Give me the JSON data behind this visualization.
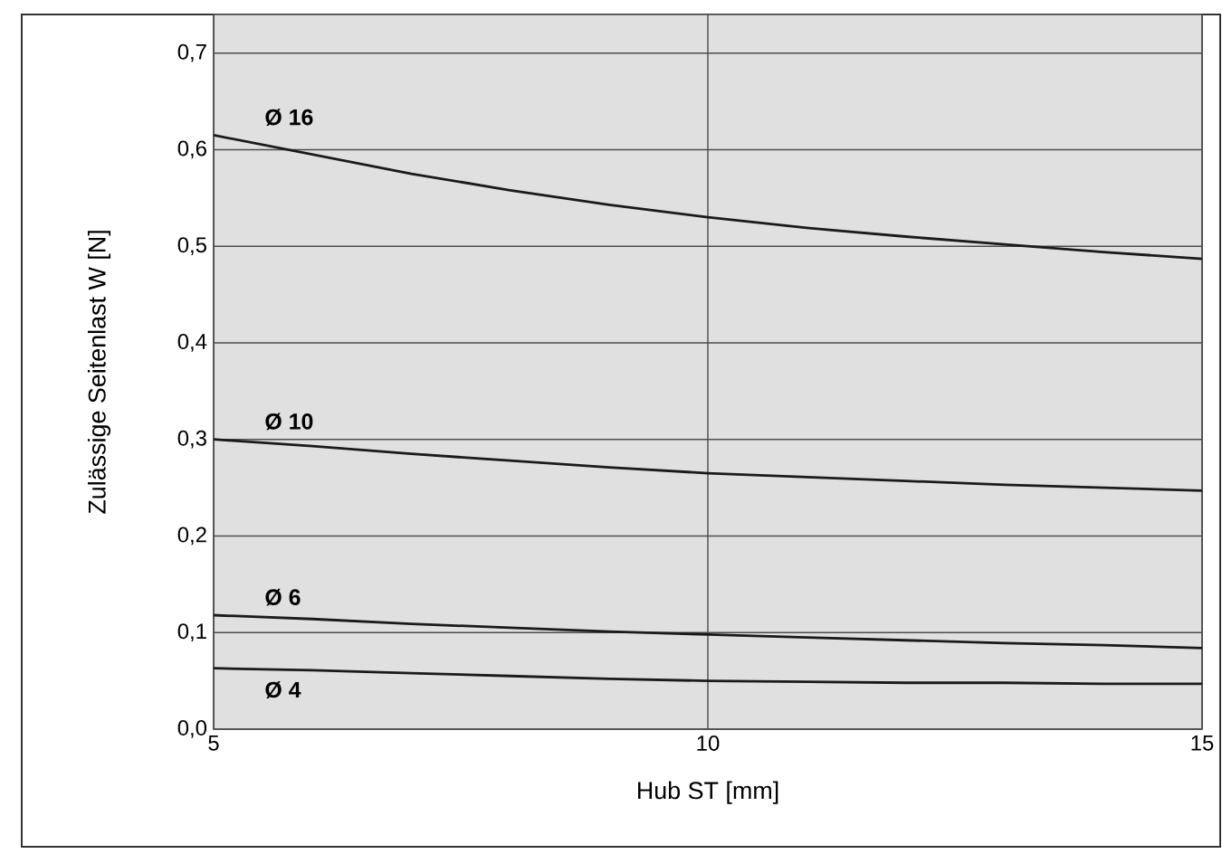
{
  "chart_data": {
    "type": "line",
    "xlabel": "Hub ST [mm]",
    "ylabel": "Zulässige Seitenlast W [N]",
    "x": [
      5,
      6,
      7,
      8,
      9,
      10,
      11,
      12,
      13,
      14,
      15
    ],
    "series": [
      {
        "name": "Ø 16",
        "color": "#1a1a1a",
        "values": [
          0.615,
          0.595,
          0.575,
          0.558,
          0.543,
          0.53,
          0.519,
          0.51,
          0.502,
          0.494,
          0.487
        ]
      },
      {
        "name": "Ø 10",
        "color": "#1a1a1a",
        "values": [
          0.3,
          0.293,
          0.285,
          0.278,
          0.271,
          0.265,
          0.261,
          0.257,
          0.253,
          0.25,
          0.247
        ]
      },
      {
        "name": "Ø 6",
        "color": "#1a1a1a",
        "values": [
          0.118,
          0.114,
          0.109,
          0.105,
          0.101,
          0.098,
          0.095,
          0.092,
          0.089,
          0.087,
          0.084
        ]
      },
      {
        "name": "Ø 4",
        "color": "#1a1a1a",
        "values": [
          0.063,
          0.061,
          0.058,
          0.055,
          0.052,
          0.05,
          0.049,
          0.048,
          0.048,
          0.047,
          0.047
        ]
      }
    ],
    "xlim": [
      5,
      15
    ],
    "ylim": [
      0,
      0.74
    ],
    "xticks": [
      5,
      10,
      15
    ],
    "yticks": [
      {
        "value": 0,
        "label": "0,0"
      },
      {
        "value": 0.1,
        "label": "0,1"
      },
      {
        "value": 0.2,
        "label": "0,2"
      },
      {
        "value": 0.3,
        "label": "0,3"
      },
      {
        "value": 0.4,
        "label": "0,4"
      },
      {
        "value": 0.5,
        "label": "0,5"
      },
      {
        "value": 0.6,
        "label": "0,6"
      },
      {
        "value": 0.7,
        "label": "0,7"
      }
    ],
    "grid": true,
    "marker": "none",
    "line_style": "solid"
  }
}
